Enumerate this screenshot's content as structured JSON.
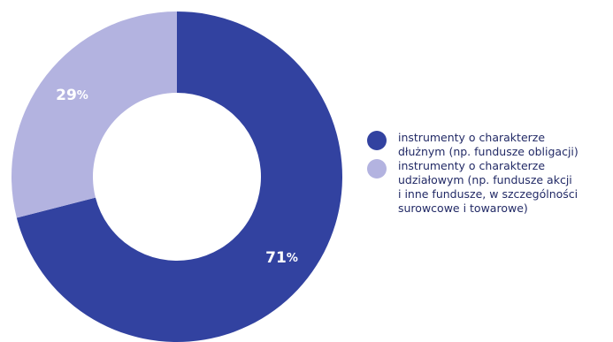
{
  "chart_data": {
    "type": "pie",
    "categories": [
      "instrumenty o charakterze dłużnym (np. fundusze obligacji)",
      "instrumenty o charakterze udziałowym (np. fundusze akcji i inne fundusze, w szczególności surowcowe i towarowe)"
    ],
    "values": [
      71,
      29
    ],
    "value_labels": [
      "71%",
      "29%"
    ],
    "colors": [
      "#3242a0",
      "#b3b3e0"
    ],
    "legend_placement": "right"
  },
  "legend": [
    {
      "line1": "instrumenty o charakterze",
      "line2": "dłużnym (np. fundusze obligacji)",
      "line3": "",
      "line4": ""
    },
    {
      "line1": "instrumenty o charakterze",
      "line2": "udziałowym (np. fundusze akcji",
      "line3": "i inne fundusze, w szczególności",
      "line4": "surowcowe i towarowe)"
    }
  ]
}
